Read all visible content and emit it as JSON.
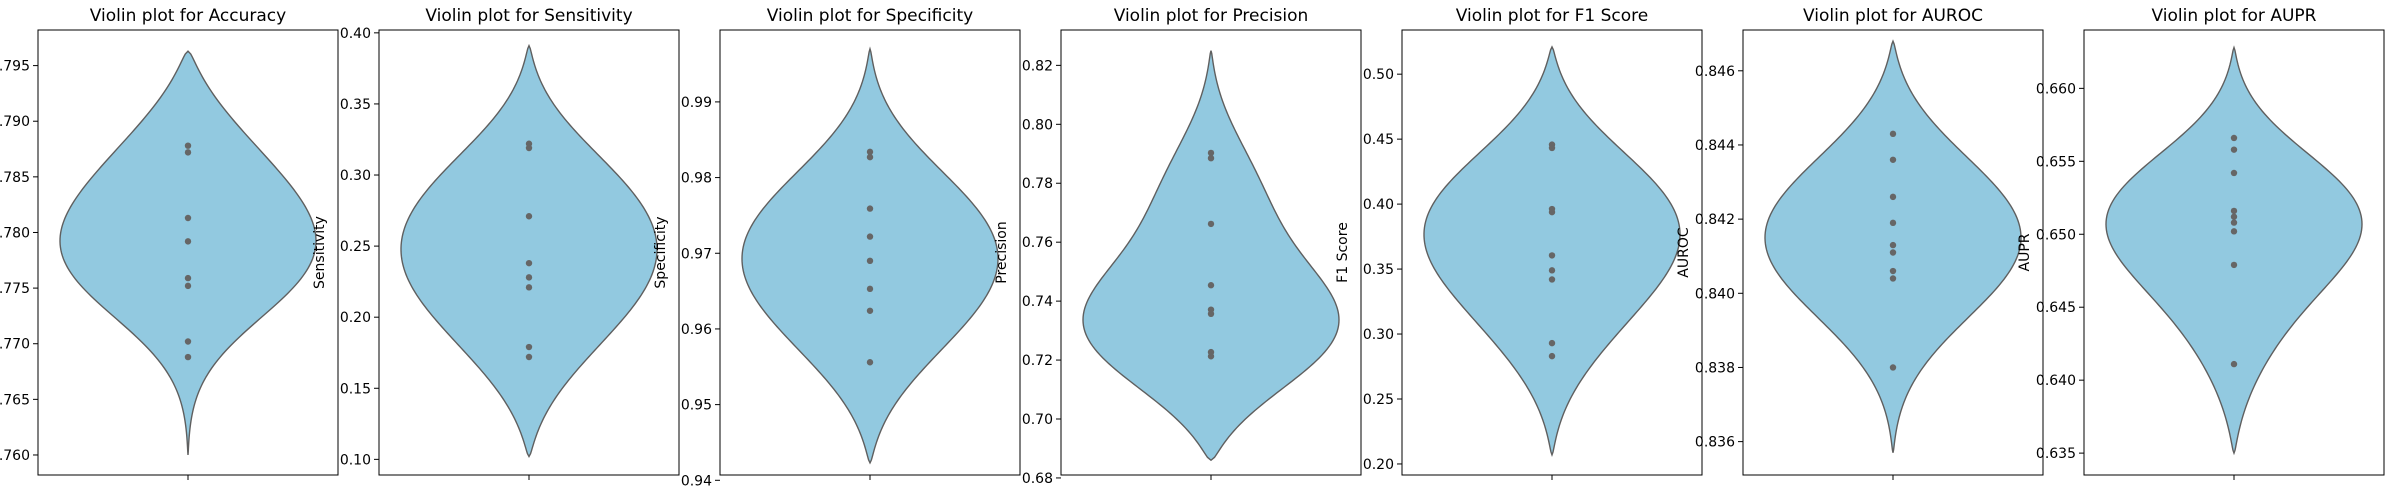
{
  "colors": {
    "violin_fill": "#92c9e0",
    "violin_edge": "#5f5f5f",
    "point": "#666666"
  },
  "chart_data": [
    {
      "type": "violin",
      "title": "Violin plot for Accuracy",
      "ylabel": "Accuracy",
      "ylim": [
        0.7582,
        0.7982
      ],
      "yticks": [
        0.76,
        0.765,
        0.77,
        0.775,
        0.78,
        0.785,
        0.79,
        0.795
      ],
      "ytick_labels": [
        "0.760",
        "0.765",
        "0.770",
        "0.775",
        "0.780",
        "0.785",
        "0.790",
        "0.795"
      ],
      "kde_range": [
        0.76,
        0.7963
      ],
      "peaks": [
        [
          0.7765,
          1.0
        ],
        [
          0.783,
          0.55
        ],
        [
          0.789,
          0.42
        ]
      ],
      "points": [
        0.7878,
        0.7872,
        0.7813,
        0.7792,
        0.7759,
        0.7752,
        0.7702,
        0.7688
      ]
    },
    {
      "type": "violin",
      "title": "Violin plot for Sensitivity",
      "ylabel": "Sensitivity",
      "ylim": [
        0.089,
        0.402
      ],
      "yticks": [
        0.1,
        0.15,
        0.2,
        0.25,
        0.3,
        0.35,
        0.4
      ],
      "ytick_labels": [
        "0.10",
        "0.15",
        "0.20",
        "0.25",
        "0.30",
        "0.35",
        "0.40"
      ],
      "kde_range": [
        0.102,
        0.391
      ],
      "peaks": [
        [
          0.24,
          1.0
        ],
        [
          0.3,
          0.75
        ],
        [
          0.18,
          0.55
        ]
      ],
      "points": [
        0.322,
        0.319,
        0.271,
        0.238,
        0.228,
        0.221,
        0.179,
        0.172
      ]
    },
    {
      "type": "violin",
      "title": "Violin plot for Specificity",
      "ylabel": "Specificity",
      "ylim": [
        0.9407,
        0.9995
      ],
      "yticks": [
        0.94,
        0.95,
        0.96,
        0.97,
        0.98,
        0.99
      ],
      "ytick_labels": [
        "0.94",
        "0.95",
        "0.96",
        "0.97",
        "0.98",
        "0.99"
      ],
      "kde_range": [
        0.9423,
        0.997
      ],
      "peaks": [
        [
          0.969,
          1.0
        ],
        [
          0.979,
          0.6
        ],
        [
          0.958,
          0.6
        ]
      ],
      "points": [
        0.9834,
        0.9827,
        0.9759,
        0.9722,
        0.969,
        0.9653,
        0.9624,
        0.9556
      ]
    },
    {
      "type": "violin",
      "title": "Violin plot for Precision",
      "ylabel": "Precision",
      "ylim": [
        0.681,
        0.832
      ],
      "yticks": [
        0.68,
        0.7,
        0.72,
        0.74,
        0.76,
        0.78,
        0.8,
        0.82
      ],
      "ytick_labels": [
        "0.68",
        "0.70",
        "0.72",
        "0.74",
        "0.76",
        "0.78",
        "0.80",
        "0.82"
      ],
      "kde_range": [
        0.686,
        0.825
      ],
      "peaks": [
        [
          0.732,
          1.0
        ],
        [
          0.779,
          0.5
        ],
        [
          0.72,
          0.55
        ]
      ],
      "points": [
        0.7903,
        0.7885,
        0.7662,
        0.7454,
        0.7371,
        0.7357,
        0.7227,
        0.7213
      ]
    },
    {
      "type": "violin",
      "title": "Violin plot for F1 Score",
      "ylabel": "F1 Score",
      "ylim": [
        0.1915,
        0.534
      ],
      "yticks": [
        0.2,
        0.25,
        0.3,
        0.35,
        0.4,
        0.45,
        0.5
      ],
      "ytick_labels": [
        "0.20",
        "0.25",
        "0.30",
        "0.35",
        "0.40",
        "0.45",
        "0.50"
      ],
      "kde_range": [
        0.207,
        0.521
      ],
      "peaks": [
        [
          0.37,
          1.0
        ],
        [
          0.425,
          0.7
        ],
        [
          0.3,
          0.5
        ]
      ],
      "points": [
        0.4458,
        0.4432,
        0.3962,
        0.3938,
        0.3605,
        0.349,
        0.342,
        0.293,
        0.283
      ]
    },
    {
      "type": "violin",
      "title": "Violin plot for AUROC",
      "ylabel": "AUROC",
      "ylim": [
        0.8351,
        0.8471
      ],
      "yticks": [
        0.836,
        0.838,
        0.84,
        0.842,
        0.844,
        0.846
      ],
      "ytick_labels": [
        "0.836",
        "0.838",
        "0.840",
        "0.842",
        "0.844",
        "0.846"
      ],
      "kde_range": [
        0.8357,
        0.8468
      ],
      "peaks": [
        [
          0.8415,
          1.0
        ],
        [
          0.8435,
          0.5
        ],
        [
          0.8395,
          0.45
        ]
      ],
      "points": [
        0.8443,
        0.8436,
        0.8426,
        0.8419,
        0.8413,
        0.8411,
        0.8406,
        0.8404,
        0.838
      ]
    },
    {
      "type": "violin",
      "title": "Violin plot for AUPR",
      "ylabel": "AUPR",
      "ylim": [
        0.6335,
        0.664
      ],
      "yticks": [
        0.635,
        0.64,
        0.645,
        0.65,
        0.655,
        0.66
      ],
      "ytick_labels": [
        "0.635",
        "0.640",
        "0.645",
        "0.650",
        "0.655",
        "0.660"
      ],
      "kde_range": [
        0.635,
        0.6628
      ],
      "peaks": [
        [
          0.6525,
          1.0
        ],
        [
          0.648,
          0.45
        ],
        [
          0.642,
          0.25
        ]
      ],
      "points": [
        0.6566,
        0.6558,
        0.6542,
        0.6516,
        0.6512,
        0.6508,
        0.6502,
        0.6479,
        0.6411
      ]
    }
  ]
}
